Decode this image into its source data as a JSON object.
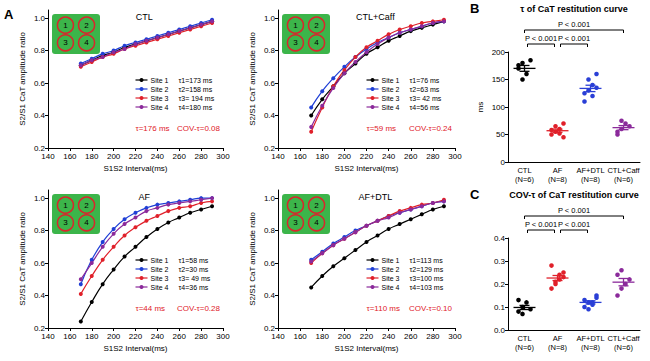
{
  "chart_data": [
    {
      "type": "line",
      "panel_label": "A",
      "title": "CTL",
      "xlabel": "S1S2 Interval(ms)",
      "ylabel": "S2/S1 CaT amplitude ratio",
      "x": [
        170,
        180,
        190,
        200,
        210,
        220,
        230,
        240,
        250,
        260,
        270,
        280,
        290
      ],
      "xlim": [
        140,
        300
      ],
      "xticks": [
        140,
        160,
        180,
        200,
        220,
        240,
        260,
        280,
        300
      ],
      "ylim": [
        0.2,
        1.05
      ],
      "yticks": [
        0.2,
        0.4,
        0.6,
        0.8,
        {
          "value": 1,
          "label": "1.0"
        }
      ],
      "grid": false,
      "marker": "circle",
      "inset_labels": [
        "1",
        "2",
        "3",
        "4"
      ],
      "annotations": [
        "τ=176 ms",
        "COV-τ=0.08"
      ],
      "series": [
        {
          "name": "Site 1",
          "tau_label": "τ1=173 ms",
          "color": "#000000",
          "values": [
            0.71,
            0.74,
            0.77,
            0.79,
            0.82,
            0.84,
            0.86,
            0.88,
            0.9,
            0.92,
            0.94,
            0.96,
            0.98
          ]
        },
        {
          "name": "Site 2",
          "tau_label": "τ2=158 ms",
          "color": "#1f3fd6",
          "values": [
            0.72,
            0.75,
            0.78,
            0.8,
            0.83,
            0.85,
            0.87,
            0.89,
            0.91,
            0.93,
            0.95,
            0.97,
            0.99
          ]
        },
        {
          "name": "Site 3",
          "tau_label": "τ3= 194 ms",
          "color": "#e0202a",
          "values": [
            0.7,
            0.73,
            0.76,
            0.78,
            0.81,
            0.83,
            0.85,
            0.87,
            0.89,
            0.91,
            0.93,
            0.95,
            0.97
          ]
        },
        {
          "name": "Site 4",
          "tau_label": "τ4=180 ms",
          "color": "#8b2a9b",
          "values": [
            0.71,
            0.74,
            0.76,
            0.79,
            0.81,
            0.84,
            0.86,
            0.88,
            0.9,
            0.92,
            0.94,
            0.96,
            0.98
          ]
        }
      ]
    },
    {
      "type": "line",
      "title": "CTL+Caff",
      "xlabel": "S1S2 Interval(ms)",
      "ylabel": "S2/S1 CaT amplitude ratio",
      "x": [
        170,
        180,
        190,
        200,
        210,
        220,
        230,
        240,
        250,
        260,
        270,
        280,
        290
      ],
      "xlim": [
        140,
        300
      ],
      "xticks": [
        140,
        160,
        180,
        200,
        220,
        240,
        260,
        280,
        300
      ],
      "ylim": [
        0.2,
        1.05
      ],
      "yticks": [
        0.2,
        0.4,
        0.6,
        0.8,
        {
          "value": 1,
          "label": "1.0"
        }
      ],
      "grid": false,
      "marker": "circle",
      "inset_labels": [
        "1",
        "2",
        "3",
        "4"
      ],
      "annotations": [
        "τ=59 ms",
        "COV-τ=0.24"
      ],
      "series": [
        {
          "name": "Site 1",
          "tau_label": "τ1=76 ms",
          "color": "#000000",
          "values": [
            0.4,
            0.5,
            0.58,
            0.66,
            0.72,
            0.78,
            0.82,
            0.86,
            0.89,
            0.92,
            0.94,
            0.96,
            0.98
          ]
        },
        {
          "name": "Site 2",
          "tau_label": "τ2=63 ms",
          "color": "#1f3fd6",
          "values": [
            0.45,
            0.55,
            0.63,
            0.7,
            0.76,
            0.81,
            0.85,
            0.88,
            0.91,
            0.93,
            0.95,
            0.97,
            0.98
          ]
        },
        {
          "name": "Site 3",
          "tau_label": "τ3= 42 ms",
          "color": "#e0202a",
          "values": [
            0.3,
            0.45,
            0.58,
            0.68,
            0.76,
            0.82,
            0.86,
            0.9,
            0.93,
            0.95,
            0.97,
            0.98,
            0.99
          ]
        },
        {
          "name": "Site 4",
          "tau_label": "τ4=56 ms",
          "color": "#8b2a9b",
          "values": [
            0.33,
            0.46,
            0.57,
            0.66,
            0.73,
            0.79,
            0.84,
            0.88,
            0.91,
            0.93,
            0.95,
            0.97,
            0.98
          ]
        }
      ]
    },
    {
      "type": "line",
      "title": "AF",
      "xlabel": "S1S2 Interval(ms)",
      "ylabel": "S2/S1 CaT amplitude ratio",
      "x": [
        170,
        180,
        190,
        200,
        210,
        220,
        230,
        240,
        250,
        260,
        270,
        280,
        290
      ],
      "xlim": [
        140,
        300
      ],
      "xticks": [
        140,
        160,
        180,
        200,
        220,
        240,
        260,
        280,
        300
      ],
      "ylim": [
        0.2,
        1.05
      ],
      "yticks": [
        0.2,
        0.4,
        0.6,
        0.8,
        {
          "value": 1,
          "label": "1.0"
        }
      ],
      "grid": false,
      "marker": "circle",
      "inset_labels": [
        "1",
        "2",
        "3",
        "4"
      ],
      "annotations": [
        "τ=44 ms",
        "COV-τ=0.28"
      ],
      "series": [
        {
          "name": "Site 1",
          "tau_label": "τ1=58 ms",
          "color": "#000000",
          "values": [
            0.24,
            0.36,
            0.47,
            0.56,
            0.64,
            0.7,
            0.76,
            0.81,
            0.85,
            0.88,
            0.91,
            0.93,
            0.95
          ]
        },
        {
          "name": "Site 2",
          "tau_label": "τ2=30 ms",
          "color": "#1f3fd6",
          "values": [
            0.47,
            0.62,
            0.73,
            0.81,
            0.87,
            0.91,
            0.94,
            0.96,
            0.97,
            0.98,
            0.99,
            1.0,
            1.0
          ]
        },
        {
          "name": "Site 3",
          "tau_label": "τ3= 49 ms",
          "color": "#e0202a",
          "values": [
            0.41,
            0.52,
            0.62,
            0.7,
            0.77,
            0.82,
            0.86,
            0.89,
            0.92,
            0.94,
            0.95,
            0.97,
            0.98
          ]
        },
        {
          "name": "Site 4",
          "tau_label": "τ4=36 ms",
          "color": "#8b2a9b",
          "values": [
            0.5,
            0.6,
            0.7,
            0.78,
            0.84,
            0.88,
            0.92,
            0.94,
            0.96,
            0.97,
            0.98,
            0.99,
            1.0
          ]
        }
      ]
    },
    {
      "type": "line",
      "title": "AF+DTL",
      "xlabel": "S1S2 Interval(ms)",
      "ylabel": "S2/S1 CaT amplitude ratio",
      "x": [
        170,
        180,
        190,
        200,
        210,
        220,
        230,
        240,
        250,
        260,
        270,
        280,
        290
      ],
      "xlim": [
        140,
        300
      ],
      "xticks": [
        140,
        160,
        180,
        200,
        220,
        240,
        260,
        280,
        300
      ],
      "ylim": [
        0.2,
        1.05
      ],
      "yticks": [
        0.2,
        0.4,
        0.6,
        0.8,
        {
          "value": 1,
          "label": "1.0"
        }
      ],
      "grid": false,
      "marker": "circle",
      "inset_labels": [
        "1",
        "2",
        "3",
        "4"
      ],
      "annotations": [
        "τ=110 ms",
        "COV-τ=0.10"
      ],
      "series": [
        {
          "name": "Site 1",
          "tau_label": "τ1=113 ms",
          "color": "#000000",
          "values": [
            0.45,
            0.52,
            0.58,
            0.63,
            0.68,
            0.73,
            0.77,
            0.81,
            0.84,
            0.87,
            0.9,
            0.93,
            0.95
          ]
        },
        {
          "name": "Site 2",
          "tau_label": "τ2=129 ms",
          "color": "#1f3fd6",
          "values": [
            0.62,
            0.67,
            0.72,
            0.76,
            0.8,
            0.83,
            0.86,
            0.89,
            0.91,
            0.93,
            0.95,
            0.97,
            0.98
          ]
        },
        {
          "name": "Site 3",
          "tau_label": "τ3=100 ms",
          "color": "#e0202a",
          "values": [
            0.6,
            0.66,
            0.71,
            0.75,
            0.79,
            0.83,
            0.86,
            0.89,
            0.92,
            0.94,
            0.96,
            0.97,
            0.99
          ]
        },
        {
          "name": "Site 4",
          "tau_label": "τ4=103 ms",
          "color": "#8b2a9b",
          "values": [
            0.61,
            0.66,
            0.71,
            0.75,
            0.79,
            0.83,
            0.86,
            0.88,
            0.91,
            0.93,
            0.95,
            0.97,
            0.98
          ]
        }
      ]
    },
    {
      "type": "scatter",
      "panel_label": "B",
      "title": "τ of CaT restitution curve",
      "ylabel": "ms",
      "categories": [
        "CTL",
        "AF",
        "AF+DTL",
        "CTL+Caff"
      ],
      "category_notes": [
        "(N=6)",
        "(N=8)",
        "(N=8)",
        "(N=6)"
      ],
      "colors": [
        "#000000",
        "#e0202a",
        "#2a3fd6",
        "#8b2a9b"
      ],
      "values": [
        [
          176,
          150,
          160,
          185,
          170,
          180
        ],
        [
          50,
          55,
          60,
          45,
          58,
          65,
          52,
          70
        ],
        [
          110,
          130,
          140,
          160,
          125,
          150,
          120,
          135
        ],
        [
          55,
          60,
          70,
          65,
          50,
          75
        ]
      ],
      "mean": [
        170.2,
        56.9,
        133.8,
        62.5
      ],
      "sem": [
        5.3,
        2.9,
        5.8,
        3.7
      ],
      "ylim": [
        0,
        200
      ],
      "yticks": [
        0,
        50,
        100,
        150,
        200
      ],
      "grid": false,
      "annotations": [
        {
          "text": "P < 0.001",
          "from": "CTL",
          "to": "AF"
        },
        {
          "text": "P < 0.001",
          "from": "AF",
          "to": "AF+DTL"
        },
        {
          "text": "P < 0.001",
          "from": "CTL",
          "to": "CTL+Caff"
        }
      ]
    },
    {
      "type": "scatter",
      "panel_label": "C",
      "title": "COV-τ of CaT restitution curve",
      "categories": [
        "CTL",
        "AF",
        "AF+DTL",
        "CTL+Caff"
      ],
      "category_notes": [
        "(N=6)",
        "(N=8)",
        "(N=8)",
        "(N=6)"
      ],
      "colors": [
        "#000000",
        "#e0202a",
        "#2a3fd6",
        "#8b2a9b"
      ],
      "values": [
        [
          0.08,
          0.1,
          0.12,
          0.09,
          0.13,
          0.07
        ],
        [
          0.18,
          0.2,
          0.22,
          0.25,
          0.28,
          0.21,
          0.24,
          0.23
        ],
        [
          0.1,
          0.12,
          0.11,
          0.14,
          0.13,
          0.09,
          0.12,
          0.15
        ],
        [
          0.15,
          0.18,
          0.2,
          0.22,
          0.24,
          0.26
        ]
      ],
      "mean": [
        0.098,
        0.226,
        0.12,
        0.208
      ],
      "sem": [
        0.009,
        0.011,
        0.007,
        0.016
      ],
      "ylim": [
        0,
        0.4
      ],
      "yticks": [
        {
          "value": 0,
          "label": "0.0"
        },
        0.1,
        0.2,
        0.3,
        0.4
      ],
      "grid": false,
      "annotations": [
        {
          "text": "P < 0.001",
          "from": "CTL",
          "to": "AF"
        },
        {
          "text": "P < 0.001",
          "from": "AF",
          "to": "AF+DTL"
        },
        {
          "text": "P < 0.001",
          "from": "CTL",
          "to": "CTL+Caff"
        }
      ]
    }
  ]
}
